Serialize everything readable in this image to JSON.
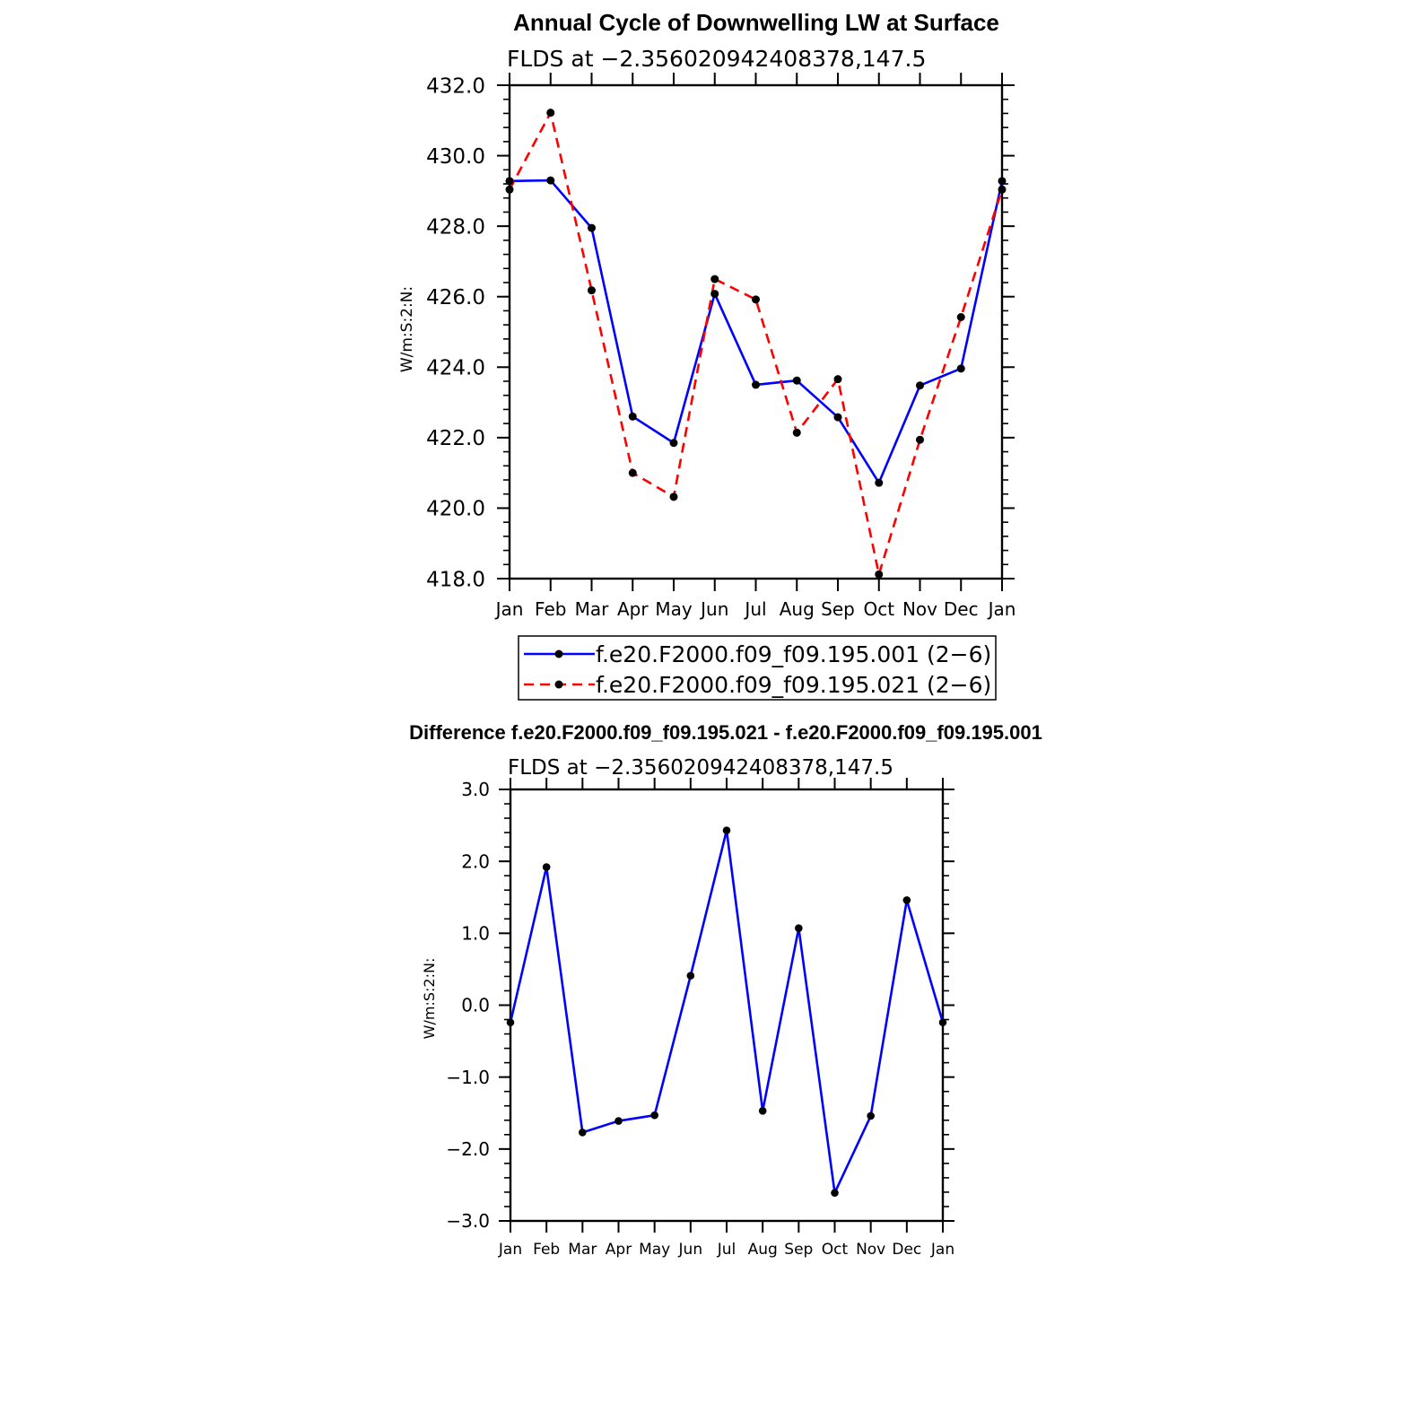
{
  "chart_data": [
    {
      "type": "line",
      "title": "Annual Cycle of Downwelling LW at Surface",
      "subtitle": "FLDS at −2.356020942408378,147.5",
      "xlabel": "",
      "ylabel": "W/m:S:2:N:",
      "categories": [
        "Jan",
        "Feb",
        "Mar",
        "Apr",
        "May",
        "Jun",
        "Jul",
        "Aug",
        "Sep",
        "Oct",
        "Nov",
        "Dec",
        "Jan"
      ],
      "ylim": [
        418.0,
        432.0
      ],
      "yticks": [
        "418.0",
        "420.0",
        "422.0",
        "424.0",
        "426.0",
        "428.0",
        "430.0",
        "432.0"
      ],
      "grid": false,
      "legend_position": "bottom",
      "series": [
        {
          "name": "f.e20.F2000.f09_f09.195.001 (2−6)",
          "color": "#0000ff",
          "dash": "solid",
          "values": [
            429.28,
            429.3,
            427.95,
            422.6,
            421.85,
            426.08,
            423.5,
            423.62,
            422.58,
            420.72,
            423.48,
            423.96,
            429.28
          ]
        },
        {
          "name": "f.e20.F2000.f09_f09.195.021 (2−6)",
          "color": "#ff0000",
          "dash": "dashed",
          "values": [
            429.04,
            431.22,
            426.18,
            421.0,
            420.32,
            426.5,
            425.92,
            422.14,
            423.66,
            418.12,
            421.94,
            425.42,
            429.04
          ]
        }
      ]
    },
    {
      "type": "line",
      "title": "Difference f.e20.F2000.f09_f09.195.021 - f.e20.F2000.f09_f09.195.001",
      "subtitle": "FLDS at −2.356020942408378,147.5",
      "xlabel": "",
      "ylabel": "W/m:S:2:N:",
      "categories": [
        "Jan",
        "Feb",
        "Mar",
        "Apr",
        "May",
        "Jun",
        "Jul",
        "Aug",
        "Sep",
        "Oct",
        "Nov",
        "Dec",
        "Jan"
      ],
      "ylim": [
        -3.0,
        3.0
      ],
      "yticks": [
        "−3.0",
        "−2.0",
        "−1.0",
        "0.0",
        "1.0",
        "2.0",
        "3.0"
      ],
      "grid": false,
      "series": [
        {
          "color": "#0000ff",
          "dash": "solid",
          "values": [
            -0.24,
            1.92,
            -1.77,
            -1.61,
            -1.53,
            0.41,
            2.43,
            -1.47,
            1.07,
            -2.61,
            -1.54,
            1.46,
            -0.24
          ]
        }
      ]
    }
  ]
}
